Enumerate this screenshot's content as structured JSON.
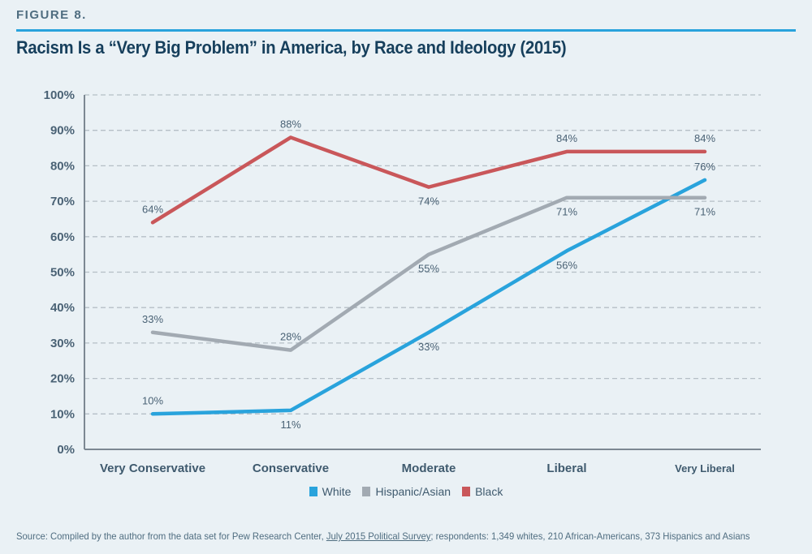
{
  "figure_label": "FIGURE 8.",
  "title": "Racism Is a “Very Big Problem” in America, by Race and Ideology (2015)",
  "source": {
    "prefix": "Source: Compiled by the author from the data set for Pew Research Center, ",
    "link_text": "July 2015 Political Survey",
    "suffix": "; respondents: 1,349 whites, 210 African-Americans, 373 Hispanics and Asians"
  },
  "chart_data": {
    "type": "line",
    "title": "Racism Is a “Very Big Problem” in America, by Race and Ideology (2015)",
    "xlabel": "",
    "ylabel": "",
    "categories": [
      "Very Conservative",
      "Conservative",
      "Moderate",
      "Liberal",
      "Very Liberal"
    ],
    "ylim": [
      0,
      100
    ],
    "yticks": [
      0,
      10,
      20,
      30,
      40,
      50,
      60,
      70,
      80,
      90,
      100
    ],
    "ytick_labels": [
      "0%",
      "10%",
      "20%",
      "30%",
      "40%",
      "50%",
      "60%",
      "70%",
      "80%",
      "90%",
      "100%"
    ],
    "grid": "horizontal-dashed",
    "legend_position": "bottom-center",
    "series": [
      {
        "name": "White",
        "color": "#29a3dc",
        "values": [
          10,
          11,
          33,
          56,
          76
        ],
        "labels": [
          "10%",
          "11%",
          "33%",
          "56%",
          "76%"
        ],
        "label_side": [
          "above",
          "below",
          "below",
          "below",
          "above"
        ]
      },
      {
        "name": "Hispanic/Asian",
        "color": "#a2aab2",
        "values": [
          33,
          28,
          55,
          71,
          71
        ],
        "labels": [
          "33%",
          "28%",
          "55%",
          "71%",
          "71%"
        ],
        "label_side": [
          "above",
          "above",
          "below",
          "below",
          "below"
        ]
      },
      {
        "name": "Black",
        "color": "#c9575a",
        "values": [
          64,
          88,
          74,
          84,
          84
        ],
        "labels": [
          "64%",
          "88%",
          "74%",
          "84%",
          "84%"
        ],
        "label_side": [
          "above",
          "above",
          "below",
          "above",
          "above"
        ]
      }
    ]
  }
}
